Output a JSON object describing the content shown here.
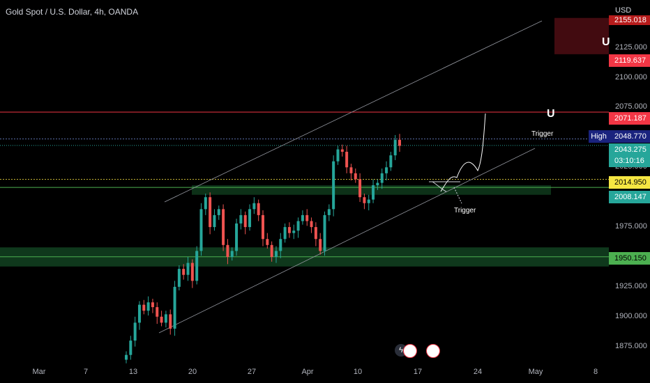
{
  "header": {
    "title": "Gold Spot / U.S. Dollar, 4h, OANDA",
    "currency": "USD"
  },
  "colors": {
    "up": "#26a69a",
    "down": "#ef5350",
    "red_level": "#f23645",
    "green_level": "#26a69a",
    "yellow_level": "#f5e642",
    "background": "#000000"
  },
  "icons": [
    "magnet-icon",
    "flag-icon",
    "lightning-icon"
  ],
  "price_tags": {
    "top_cut": "2155.018",
    "red_upper": "2119.637",
    "red_mid": "2071.187",
    "high_label": "High",
    "high_value": "2048.770",
    "current": "2043.275",
    "countdown": "03:10:16",
    "yellow": "2014.950",
    "green_upper": "2008.147",
    "green_lower": "1950.150"
  },
  "annotations": {
    "trigger_upper": "Trigger",
    "trigger_lower": "Trigger"
  },
  "chart_data": {
    "type": "candlestick",
    "title": "Gold Spot / U.S. Dollar, 4h, OANDA",
    "ylim": [
      1862,
      2165
    ],
    "y_ticks": [
      "2125.000",
      "2100.000",
      "2075.000",
      "2050.000",
      "2025.000",
      "2000.000",
      "1975.000",
      "1950.000",
      "1925.000",
      "1900.000",
      "1875.000"
    ],
    "x_ticks": [
      "Mar",
      "7",
      "13",
      "20",
      "27",
      "Apr",
      "10",
      "17",
      "24",
      "May",
      "8"
    ],
    "horizontal_levels": [
      {
        "name": "red-level",
        "value": 2071.187
      },
      {
        "name": "high-level",
        "value": 2048.77
      },
      {
        "name": "current-level",
        "value": 2043.275
      },
      {
        "name": "yellow-level",
        "value": 2014.95
      },
      {
        "name": "green-level-upper",
        "value": 2008.147
      },
      {
        "name": "green-level-lower",
        "value": 1950.15
      }
    ],
    "zones": [
      {
        "name": "red-zone",
        "from": 2119.637,
        "to": 2150
      },
      {
        "name": "green-zone-upper",
        "from": 2002,
        "to": 2010
      },
      {
        "name": "green-zone-lower",
        "from": 1942,
        "to": 1958
      }
    ],
    "candles_close": [
      1868,
      1880,
      1895,
      1910,
      1905,
      1912,
      1908,
      1900,
      1895,
      1902,
      1890,
      1925,
      1940,
      1935,
      1945,
      1930,
      1955,
      1990,
      2000,
      1975,
      1985,
      1990,
      1960,
      1950,
      1955,
      1978,
      1985,
      1975,
      1990,
      1995,
      1985,
      1965,
      1960,
      1950,
      1955,
      1965,
      1975,
      1970,
      1972,
      1980,
      1985,
      1980,
      1975,
      1965,
      1955,
      1985,
      1990,
      2030,
      2040,
      2038,
      2025,
      2020,
      2015,
      2000,
      1995,
      1998,
      2010,
      2012,
      2020,
      2025,
      2035,
      2048,
      2043
    ],
    "candle_x_range": [
      "13",
      "13 Apr"
    ]
  }
}
